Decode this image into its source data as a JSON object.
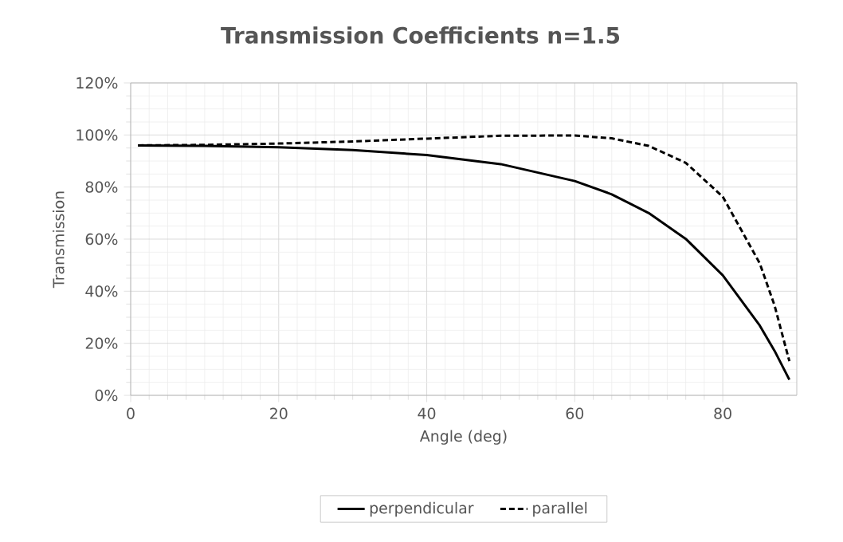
{
  "chart_data": {
    "type": "line",
    "title": "Transmission  Coefficients n=1.5",
    "xlabel": "Angle (deg)",
    "ylabel": "Transmission",
    "x": [
      1,
      10,
      20,
      30,
      40,
      50,
      60,
      65,
      70,
      75,
      80,
      85,
      87,
      89
    ],
    "series": [
      {
        "name": "perpendicular",
        "color": "#000000",
        "line_style": "solid",
        "values": [
          96,
          95.8,
          95.3,
          94.2,
          92.3,
          88.8,
          82.3,
          77.2,
          70,
          60.1,
          46.1,
          26.8,
          17.1,
          6
        ]
      },
      {
        "name": "parallel",
        "color": "#000000",
        "line_style": "dashed",
        "values": [
          96,
          96.2,
          96.7,
          97.5,
          98.6,
          99.7,
          99.8,
          98.7,
          95.8,
          89.3,
          76.3,
          50.7,
          34.5,
          13.1
        ]
      }
    ],
    "xlim": [
      0,
      90
    ],
    "xticks": [
      0,
      20,
      40,
      60,
      80
    ],
    "ylim": [
      0,
      120
    ],
    "yticks": [
      {
        "value": 0,
        "label": "0%"
      },
      {
        "value": 20,
        "label": "20%"
      },
      {
        "value": 40,
        "label": "40%"
      },
      {
        "value": 60,
        "label": "60%"
      },
      {
        "value": 80,
        "label": "80%"
      },
      {
        "value": 100,
        "label": "100%"
      },
      {
        "value": 120,
        "label": "120%"
      }
    ],
    "grid": true,
    "legend": "bottom",
    "marker": "none"
  }
}
